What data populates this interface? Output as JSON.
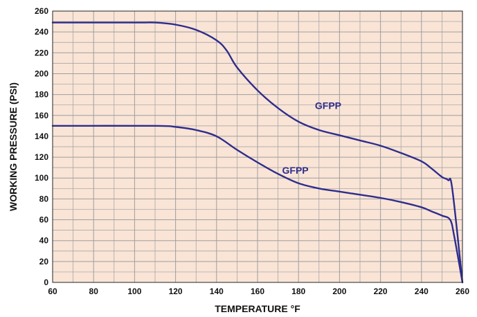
{
  "chart_data": {
    "type": "line",
    "title": "",
    "xlabel": "TEMPERATURE °F",
    "ylabel": "WORKING PRESSURE (PSI)",
    "xlim": [
      60,
      260
    ],
    "ylim": [
      0,
      260
    ],
    "x_major_ticks": [
      60,
      80,
      100,
      120,
      140,
      160,
      180,
      200,
      220,
      240,
      260
    ],
    "y_major_ticks": [
      0,
      20,
      40,
      60,
      80,
      100,
      120,
      140,
      160,
      180,
      200,
      220,
      240,
      260
    ],
    "grid": true,
    "plot_background": "#f9e4d6",
    "grid_color": "#9e9e9e",
    "series_color": "#2e2d8c",
    "series": [
      {
        "name": "GFPP",
        "label_at": [
          188,
          166
        ],
        "points": [
          [
            60,
            249
          ],
          [
            100,
            249
          ],
          [
            110,
            249
          ],
          [
            120,
            247
          ],
          [
            130,
            242
          ],
          [
            140,
            232
          ],
          [
            145,
            222
          ],
          [
            150,
            206
          ],
          [
            160,
            184
          ],
          [
            170,
            167
          ],
          [
            180,
            154
          ],
          [
            190,
            146
          ],
          [
            200,
            141
          ],
          [
            210,
            136
          ],
          [
            220,
            131
          ],
          [
            230,
            124
          ],
          [
            240,
            116
          ],
          [
            245,
            109
          ],
          [
            250,
            101
          ],
          [
            253,
            98
          ],
          [
            255,
            90
          ],
          [
            260,
            0
          ]
        ]
      },
      {
        "name": "GFPP",
        "label_at": [
          172,
          104
        ],
        "points": [
          [
            60,
            150
          ],
          [
            110,
            150
          ],
          [
            120,
            149
          ],
          [
            130,
            146
          ],
          [
            140,
            140
          ],
          [
            150,
            127
          ],
          [
            160,
            115
          ],
          [
            170,
            104
          ],
          [
            180,
            95
          ],
          [
            190,
            90
          ],
          [
            200,
            87
          ],
          [
            210,
            84
          ],
          [
            220,
            81
          ],
          [
            230,
            77
          ],
          [
            240,
            72
          ],
          [
            245,
            68
          ],
          [
            250,
            64
          ],
          [
            254,
            60
          ],
          [
            256,
            44
          ],
          [
            260,
            0
          ]
        ]
      }
    ]
  }
}
